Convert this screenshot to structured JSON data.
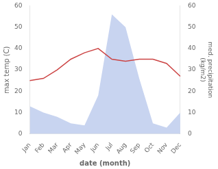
{
  "chart_data": {
    "type": "line",
    "categories": [
      "Jan",
      "Feb",
      "Mar",
      "Apr",
      "May",
      "Jun",
      "Jul",
      "Aug",
      "Sep",
      "Oct",
      "Nov",
      "Dec"
    ],
    "series": [
      {
        "type": "area",
        "color": "#c8d4f0",
        "axis": "y2",
        "values": [
          13,
          10,
          8,
          5,
          4,
          18,
          56,
          50,
          26,
          5,
          3,
          10
        ]
      },
      {
        "type": "line",
        "color": "#cc4444",
        "values": [
          25,
          26,
          30,
          35,
          38,
          40,
          35,
          34,
          35,
          35,
          33,
          27
        ]
      }
    ],
    "xlabel": "date (month)",
    "ylabel": "max temp (C)",
    "y2label": "med. precipitation\n(kg/m2)",
    "ylim": [
      0,
      60
    ],
    "yticks": [
      0,
      10,
      20,
      30,
      40,
      50,
      60
    ],
    "y2lim": [
      0,
      60
    ],
    "y2ticks": [
      0,
      10,
      20,
      30,
      40,
      50,
      60
    ],
    "grid": false
  }
}
